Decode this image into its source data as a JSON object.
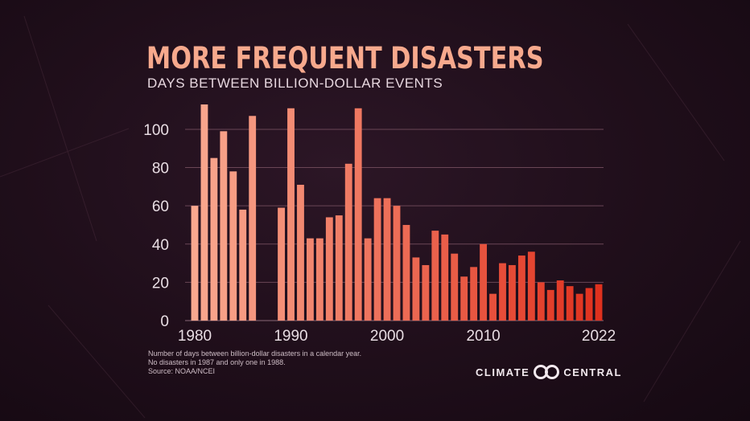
{
  "header": {
    "title": "MORE FREQUENT DISASTERS",
    "subtitle": "DAYS BETWEEN BILLION-DOLLAR EVENTS"
  },
  "footnote": {
    "line1": "Number of days between billion-dollar disasters in a calendar year.",
    "line2": "No disasters in 1987 and only one in 1988.",
    "line3": "Source: NOAA/NCEI"
  },
  "logo": {
    "left": "CLIMATE",
    "right": "CENTRAL",
    "icon": "climate-central-logo-icon"
  },
  "colors": {
    "start": "#f9a88f",
    "end": "#e0311e",
    "grid": "#6a4656",
    "tick_text": "#e8dde3"
  },
  "chart_data": {
    "type": "bar",
    "title": "MORE FREQUENT DISASTERS",
    "subtitle": "DAYS BETWEEN BILLION-DOLLAR EVENTS",
    "xlabel": "",
    "ylabel": "",
    "ylim": [
      0,
      113
    ],
    "yticks": [
      0,
      20,
      40,
      60,
      80,
      100
    ],
    "xticks": [
      "1980",
      "1990",
      "2000",
      "2010",
      "2022"
    ],
    "grid": true,
    "categories": [
      "1980",
      "1981",
      "1982",
      "1983",
      "1984",
      "1985",
      "1986",
      "1987",
      "1988",
      "1989",
      "1990",
      "1991",
      "1992",
      "1993",
      "1994",
      "1995",
      "1996",
      "1997",
      "1998",
      "1999",
      "2000",
      "2001",
      "2002",
      "2003",
      "2004",
      "2005",
      "2006",
      "2007",
      "2008",
      "2009",
      "2010",
      "2011",
      "2012",
      "2013",
      "2014",
      "2015",
      "2016",
      "2017",
      "2018",
      "2019",
      "2020",
      "2021",
      "2022"
    ],
    "values": [
      60,
      113,
      85,
      99,
      78,
      58,
      107,
      0,
      0,
      59,
      111,
      71,
      43,
      43,
      54,
      55,
      82,
      111,
      43,
      64,
      64,
      60,
      50,
      33,
      29,
      47,
      45,
      35,
      23,
      28,
      40,
      14,
      30,
      29,
      34,
      36,
      20,
      16,
      21,
      18,
      14,
      17,
      19
    ]
  }
}
